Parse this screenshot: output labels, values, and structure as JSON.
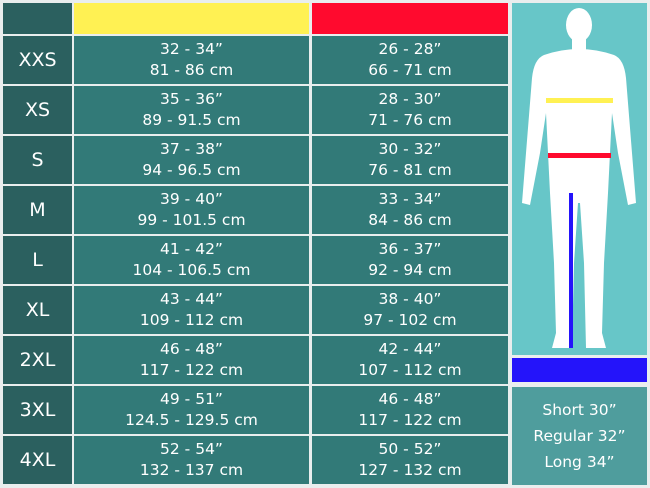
{
  "colors": {
    "chest": "#fff153",
    "waist": "#ff0a2e",
    "inseam": "#2414fa"
  },
  "rows": [
    {
      "size": "XXS",
      "chest_in": "32 - 34”",
      "chest_cm": "81 - 86 cm",
      "waist_in": "26 - 28”",
      "waist_cm": "66 - 71 cm"
    },
    {
      "size": "XS",
      "chest_in": "35 - 36”",
      "chest_cm": "89 - 91.5 cm",
      "waist_in": "28 - 30”",
      "waist_cm": "71 - 76 cm"
    },
    {
      "size": "S",
      "chest_in": "37 - 38”",
      "chest_cm": "94 - 96.5 cm",
      "waist_in": "30 - 32”",
      "waist_cm": "76 - 81 cm"
    },
    {
      "size": "M",
      "chest_in": "39 - 40”",
      "chest_cm": "99 - 101.5 cm",
      "waist_in": "33 - 34”",
      "waist_cm": "84 - 86 cm"
    },
    {
      "size": "L",
      "chest_in": "41 - 42”",
      "chest_cm": "104 - 106.5 cm",
      "waist_in": "36 - 37”",
      "waist_cm": "92 - 94 cm"
    },
    {
      "size": "XL",
      "chest_in": "43 - 44”",
      "chest_cm": "109 - 112 cm",
      "waist_in": "38 - 40”",
      "waist_cm": "97 - 102 cm"
    },
    {
      "size": "2XL",
      "chest_in": "46 - 48”",
      "chest_cm": "117 - 122 cm",
      "waist_in": "42 - 44”",
      "waist_cm": "107 - 112 cm"
    },
    {
      "size": "3XL",
      "chest_in": "49 - 51”",
      "chest_cm": "124.5 - 129.5 cm",
      "waist_in": "46 - 48”",
      "waist_cm": "117 - 122 cm"
    },
    {
      "size": "4XL",
      "chest_in": "52 - 54”",
      "chest_cm": "132 - 137 cm",
      "waist_in": "50 - 52”",
      "waist_cm": "127 - 132 cm"
    }
  ],
  "leg_lengths": [
    "Short 30”",
    "Regular 32”",
    "Long 34”"
  ]
}
